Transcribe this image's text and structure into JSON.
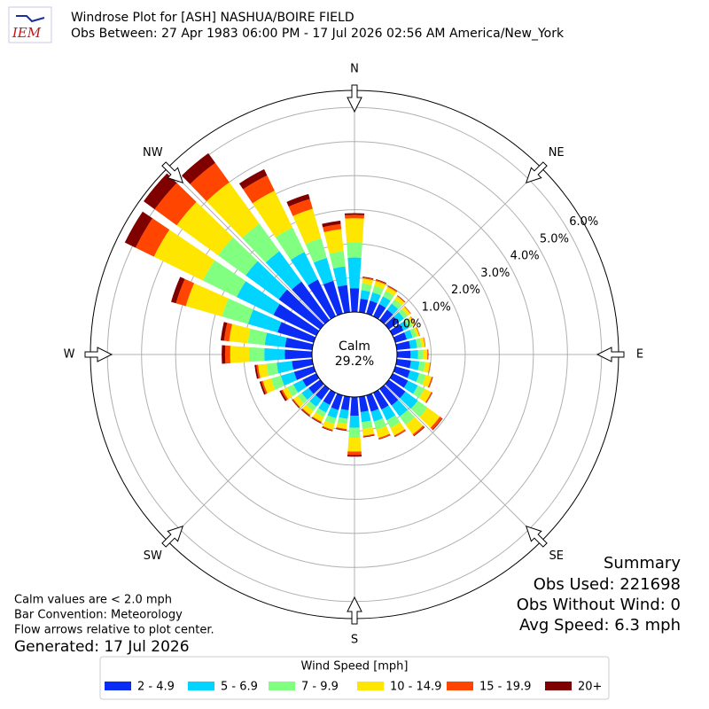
{
  "logo": "IEM",
  "chart_data": {
    "type": "windrose",
    "title": "Windrose Plot for [ASH] NASHUA/BOIRE FIELD",
    "subtitle": "Obs Between: 27 Apr 1983 06:00 PM - 17 Jul 2026 02:56 AM America/New_York",
    "calm_label": "Calm",
    "calm_value": 29.2,
    "calm_value_label": "29.2%",
    "legend_title": "Wind Speed [mph]",
    "x": [
      0,
      10,
      20,
      30,
      40,
      50,
      60,
      70,
      80,
      90,
      100,
      110,
      120,
      130,
      140,
      150,
      160,
      170,
      180,
      190,
      200,
      210,
      220,
      230,
      240,
      250,
      260,
      270,
      280,
      290,
      300,
      310,
      320,
      330,
      340,
      350
    ],
    "xlim": [
      0,
      360
    ],
    "xticks": [
      {
        "value": 0,
        "label": "N"
      },
      {
        "value": 45,
        "label": "NE"
      },
      {
        "value": 90,
        "label": "E"
      },
      {
        "value": 135,
        "label": "SE"
      },
      {
        "value": 180,
        "label": "S"
      },
      {
        "value": 225,
        "label": "SW"
      },
      {
        "value": 270,
        "label": "W"
      },
      {
        "value": 315,
        "label": "NW"
      }
    ],
    "ylim": [
      0,
      6.5
    ],
    "yticks": [
      {
        "value": 0,
        "label": "0.0%"
      },
      {
        "value": 1,
        "label": "1.0%"
      },
      {
        "value": 2,
        "label": "2.0%"
      },
      {
        "value": 3,
        "label": "3.0%"
      },
      {
        "value": 4,
        "label": "4.0%"
      },
      {
        "value": 5,
        "label": "5.0%"
      },
      {
        "value": 6,
        "label": "6.0%"
      }
    ],
    "grid": true,
    "series": [
      {
        "name": "2 - 4.9",
        "color": "#0b2cf5",
        "values": [
          0.7,
          0.4,
          0.4,
          0.4,
          0.38,
          0.35,
          0.35,
          0.35,
          0.4,
          0.4,
          0.42,
          0.45,
          0.5,
          0.6,
          0.6,
          0.55,
          0.5,
          0.45,
          0.55,
          0.4,
          0.45,
          0.4,
          0.4,
          0.42,
          0.45,
          0.6,
          0.6,
          0.8,
          0.8,
          1.1,
          1.4,
          1.5,
          1.4,
          1.2,
          1.0,
          0.8
        ]
      },
      {
        "name": "5 - 6.9",
        "color": "#00d4ff",
        "values": [
          0.9,
          0.25,
          0.25,
          0.25,
          0.22,
          0.2,
          0.18,
          0.18,
          0.2,
          0.22,
          0.25,
          0.28,
          0.32,
          0.45,
          0.4,
          0.35,
          0.3,
          0.3,
          0.35,
          0.25,
          0.25,
          0.25,
          0.25,
          0.25,
          0.3,
          0.4,
          0.45,
          0.6,
          0.6,
          0.9,
          1.2,
          1.2,
          1.1,
          0.9,
          0.7,
          0.55
        ]
      },
      {
        "name": "7 - 9.9",
        "color": "#80ff80",
        "values": [
          0.45,
          0.2,
          0.2,
          0.18,
          0.15,
          0.13,
          0.12,
          0.12,
          0.13,
          0.15,
          0.17,
          0.2,
          0.22,
          0.35,
          0.3,
          0.25,
          0.25,
          0.2,
          0.3,
          0.15,
          0.18,
          0.15,
          0.15,
          0.15,
          0.2,
          0.3,
          0.3,
          0.45,
          0.5,
          0.8,
          1.1,
          1.0,
          1.0,
          0.8,
          0.6,
          0.45
        ]
      },
      {
        "name": "10 - 14.9",
        "color": "#ffe600",
        "values": [
          0.7,
          0.15,
          0.15,
          0.13,
          0.12,
          0.1,
          0.08,
          0.08,
          0.1,
          0.12,
          0.14,
          0.18,
          0.22,
          0.45,
          0.35,
          0.25,
          0.25,
          0.2,
          0.4,
          0.15,
          0.17,
          0.15,
          0.15,
          0.15,
          0.15,
          0.25,
          0.25,
          0.55,
          0.55,
          1.1,
          1.6,
          1.5,
          1.5,
          1.2,
          0.9,
          0.65
        ]
      },
      {
        "name": "15 - 19.9",
        "color": "#ff4500",
        "values": [
          0.1,
          0.03,
          0.03,
          0.03,
          0.02,
          0.02,
          0.02,
          0.02,
          0.02,
          0.02,
          0.02,
          0.03,
          0.03,
          0.08,
          0.05,
          0.04,
          0.04,
          0.03,
          0.1,
          0.03,
          0.03,
          0.03,
          0.03,
          0.03,
          0.05,
          0.05,
          0.05,
          0.15,
          0.15,
          0.3,
          0.6,
          0.8,
          0.7,
          0.5,
          0.3,
          0.15
        ]
      },
      {
        "name": "20+",
        "color": "#800000",
        "values": [
          0.05,
          0.02,
          0.02,
          0.01,
          0.01,
          0,
          0,
          0,
          0,
          0.01,
          0,
          0.01,
          0.01,
          0.02,
          0.02,
          0.01,
          0.01,
          0.02,
          0.05,
          0.02,
          0.02,
          0.02,
          0.02,
          0.02,
          0.05,
          0.05,
          0.05,
          0.1,
          0.1,
          0.15,
          0.35,
          0.4,
          0.35,
          0.2,
          0.15,
          0.1
        ]
      }
    ]
  },
  "notes": [
    "Calm values are < 2.0 mph",
    "Bar Convention: Meteorology",
    "Flow arrows relative to plot center."
  ],
  "generated": "Generated: 17 Jul 2026",
  "summary": {
    "title": "Summary",
    "lines": [
      "Obs Used: 221698",
      "Obs Without Wind: 0",
      "Avg Speed: 6.3 mph"
    ]
  }
}
